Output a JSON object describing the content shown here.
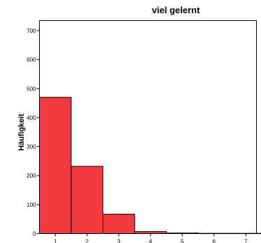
{
  "chart_data": {
    "type": "bar",
    "title": "viel gelernt",
    "xlabel": "",
    "ylabel": "Häufigkeit",
    "categories": [
      "1",
      "2",
      "3",
      "4",
      "5",
      "6",
      "7"
    ],
    "values": [
      470,
      232,
      67,
      7,
      2,
      1,
      1
    ],
    "ylim": [
      0,
      700
    ],
    "yticks": [
      0,
      100,
      200,
      300,
      400,
      500,
      600,
      700
    ],
    "grid": false,
    "legend": "none",
    "bar_color": "#f03a3e"
  }
}
